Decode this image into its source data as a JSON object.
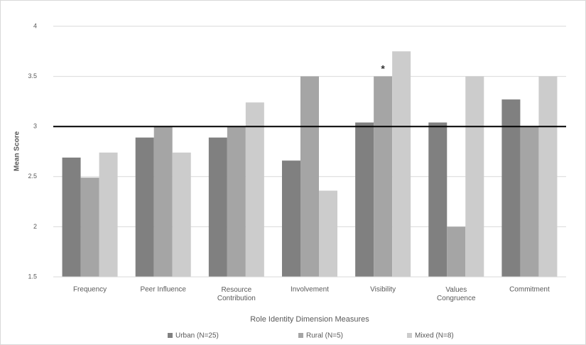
{
  "chart_data": {
    "type": "bar",
    "y_label": "Mean Score",
    "x_label": "Role Identity Dimension Measures",
    "categories": [
      "Frequency",
      "Peer Influence",
      "Resource Contribution",
      "Involvement",
      "Visibility",
      "Values Congruence",
      "Commitment"
    ],
    "series": [
      {
        "name": "Urban (N=25)",
        "color": "#808080",
        "values": [
          2.69,
          2.89,
          2.89,
          2.66,
          3.04,
          3.04,
          3.27
        ]
      },
      {
        "name": "Rural (N=5)",
        "color": "#a5a5a5",
        "values": [
          2.49,
          3.0,
          3.0,
          3.5,
          3.5,
          2.0,
          3.0
        ]
      },
      {
        "name": "Mixed (N=8)",
        "color": "#cccccc",
        "values": [
          2.74,
          2.74,
          3.24,
          2.36,
          3.75,
          3.5,
          3.5
        ]
      }
    ],
    "annotations": [
      {
        "text": "*",
        "series": 1,
        "category": 4
      }
    ],
    "reference_line": 3,
    "ylim": [
      1.5,
      4
    ],
    "yticks": [
      1.5,
      2,
      2.5,
      3,
      3.5,
      4
    ],
    "grid": true,
    "legend": "bottom"
  }
}
